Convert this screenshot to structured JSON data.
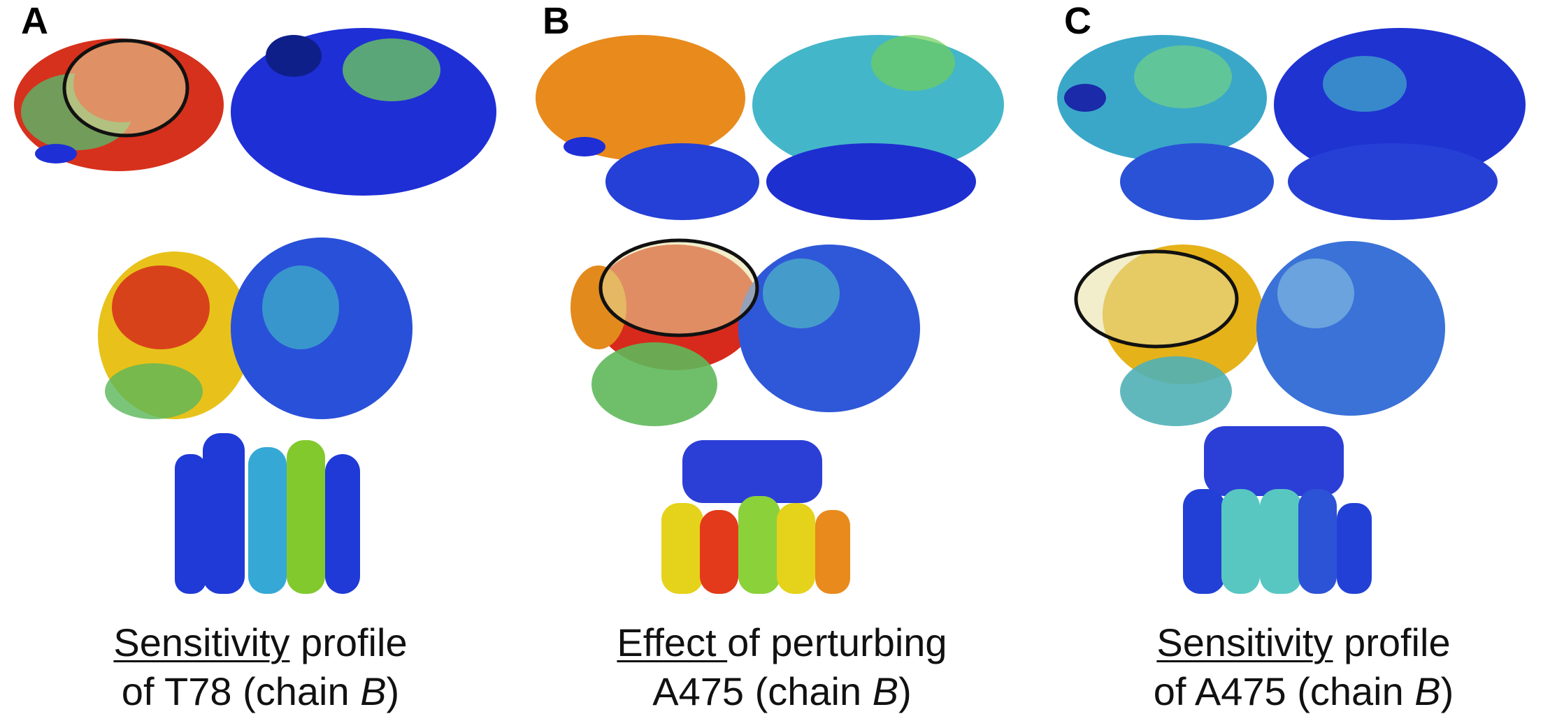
{
  "panels": [
    {
      "letter": "A",
      "caption": {
        "line1_underlined": "Sensitivity",
        "line1_rest": " profile",
        "line2_pre": "of T78 (chain ",
        "line2_chain": "B",
        "line2_post": ")"
      },
      "colors": {
        "top_left": "#d6311c",
        "top_right": "#1f2fd6",
        "mid_left": "#e8c21a",
        "mid_right": "#2950d9",
        "tm_left": "#1f3ad6",
        "tm_mid": "#35a8d6",
        "tm_right": "#82c92e"
      },
      "highlight": "top-left"
    },
    {
      "letter": "B",
      "caption": {
        "line1_underlined": "Effect ",
        "line1_rest": "of perturbing",
        "line2_pre": "A475 (chain ",
        "line2_chain": "B",
        "line2_post": ")"
      },
      "colors": {
        "top_left": "#e88a1c",
        "top_right": "#44b6c9",
        "mid_left": "#d72a1c",
        "mid_right": "#2f58d8",
        "tm_left": "#e5d21a",
        "tm_mid": "#e23a1a",
        "tm_right": "#7fcf35"
      },
      "highlight": "mid-left"
    },
    {
      "letter": "C",
      "caption": {
        "line1_underlined": "Sensitivity",
        "line1_rest": " profile",
        "line2_pre": "of A475 (chain ",
        "line2_chain": "B",
        "line2_post": ")"
      },
      "colors": {
        "top_left": "#3aa7c9",
        "top_right": "#1f33d1",
        "mid_left": "#e5b21a",
        "mid_right": "#3a72d8",
        "tm_left": "#2240d6",
        "tm_mid": "#58c7c1",
        "tm_right": "#2c52d6"
      },
      "highlight": "mid-left"
    }
  ]
}
